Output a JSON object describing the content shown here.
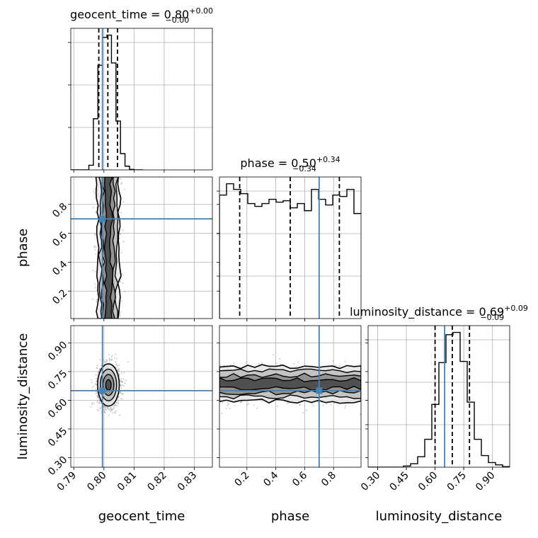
{
  "chart_data": {
    "type": "corner",
    "parameters": [
      "geocent_time",
      "phase",
      "luminosity_distance"
    ],
    "truths": {
      "geocent_time": 0.7995,
      "phase": 0.7,
      "luminosity_distance": 0.65
    },
    "colors": {
      "truth": "#4682b4",
      "hist": "#000000",
      "grid": "#b0b0b0",
      "scatter": "#808080"
    },
    "grid": true,
    "axes": {
      "geocent_time": {
        "lim": [
          0.789,
          0.836
        ],
        "ticks": [
          0.79,
          0.8,
          0.81,
          0.82,
          0.83
        ],
        "tick_labels": [
          "0.79",
          "0.80",
          "0.81",
          "0.82",
          "0.83"
        ]
      },
      "phase": {
        "lim": [
          0.01,
          0.99
        ],
        "ticks": [
          0.2,
          0.4,
          0.6,
          0.8
        ],
        "tick_labels": [
          "0.2",
          "0.4",
          "0.6",
          "0.8"
        ]
      },
      "luminosity_distance": {
        "lim": [
          0.25,
          0.99
        ],
        "ticks": [
          0.3,
          0.45,
          0.6,
          0.75,
          0.9
        ],
        "tick_labels": [
          "0.30",
          "0.45",
          "0.60",
          "0.75",
          "0.90"
        ]
      }
    },
    "diagonal": [
      {
        "param": "geocent_time",
        "title_base": "geocent_time = 0.80",
        "title_sup": "+0.00",
        "title_sub": "−0.00",
        "quantiles": [
          0.7983,
          0.8013,
          0.8045
        ],
        "bins": {
          "start": 0.789,
          "width": 0.0015,
          "counts": [
            0,
            0,
            0,
            0,
            10,
            110,
            225,
            285,
            290,
            230,
            105,
            35,
            8,
            1,
            0,
            0
          ]
        }
      },
      {
        "param": "phase",
        "title_base": "phase = 0.50",
        "title_sup": "+0.34",
        "title_sub": "−0.34",
        "quantiles": [
          0.15,
          0.5,
          0.84
        ],
        "bins": {
          "start": 0.01,
          "width": 0.049,
          "counts": [
            87,
            95,
            91,
            88,
            81,
            79,
            81,
            84,
            82,
            83,
            78,
            81,
            76,
            91,
            84,
            80,
            87,
            86,
            91,
            74
          ]
        }
      },
      {
        "param": "luminosity_distance",
        "title_base": "luminosity_distance = 0.69",
        "title_sup": "+0.09",
        "title_sub": "−0.09",
        "quantiles": [
          0.6,
          0.69,
          0.78
        ],
        "bins": {
          "start": 0.25,
          "width": 0.037,
          "counts": [
            0,
            0,
            0,
            0,
            0,
            2,
            6,
            18,
            48,
            108,
            180,
            228,
            232,
            182,
            112,
            48,
            20,
            8,
            4,
            1
          ]
        }
      }
    ],
    "off_diagonal": [
      {
        "x": "geocent_time",
        "y": "phase",
        "center": [
          0.8015,
          0.5
        ],
        "spread": [
          0.0018,
          0.3
        ]
      },
      {
        "x": "geocent_time",
        "y": "luminosity_distance",
        "center": [
          0.8015,
          0.68
        ],
        "spread": [
          0.0018,
          0.055
        ]
      },
      {
        "x": "phase",
        "y": "luminosity_distance",
        "center": [
          0.5,
          0.685
        ],
        "spread": [
          0.3,
          0.045
        ]
      }
    ]
  }
}
